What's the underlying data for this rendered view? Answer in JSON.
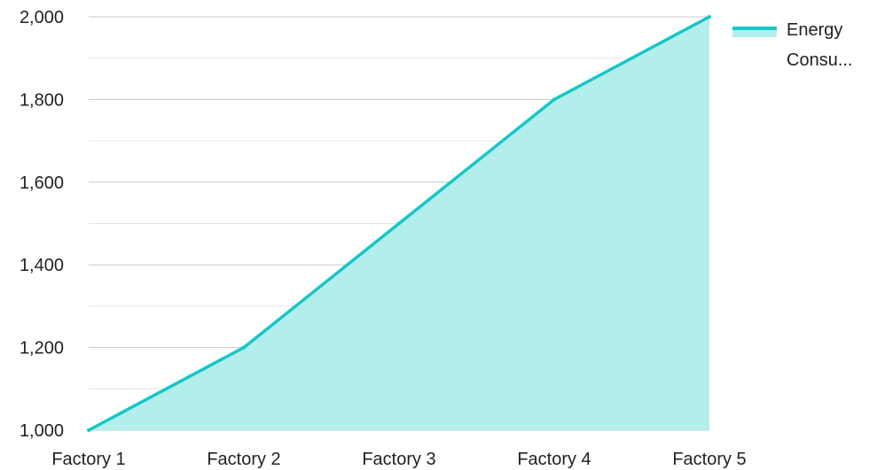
{
  "chart_data": {
    "type": "area",
    "categories": [
      "Factory 1",
      "Factory 2",
      "Factory 3",
      "Factory 4",
      "Factory 5"
    ],
    "series": [
      {
        "name": "Energy Consu...",
        "values": [
          1000,
          1200,
          1500,
          1800,
          2000
        ]
      }
    ],
    "ylim": [
      1000,
      2000
    ],
    "yticks": [
      1000,
      1200,
      1400,
      1600,
      1800,
      2000
    ],
    "ytick_labels": [
      "1,000",
      "1,200",
      "1,400",
      "1,600",
      "1,800",
      "2,000"
    ],
    "grid": true,
    "legend_position": "top-right",
    "legend_lines": [
      "Energy",
      "Consu..."
    ],
    "colors": {
      "line": "#17C6C6",
      "fill": "#B2EEEC",
      "grid": "#C8C8C8",
      "grid_minor": "#E6E6E6"
    }
  }
}
